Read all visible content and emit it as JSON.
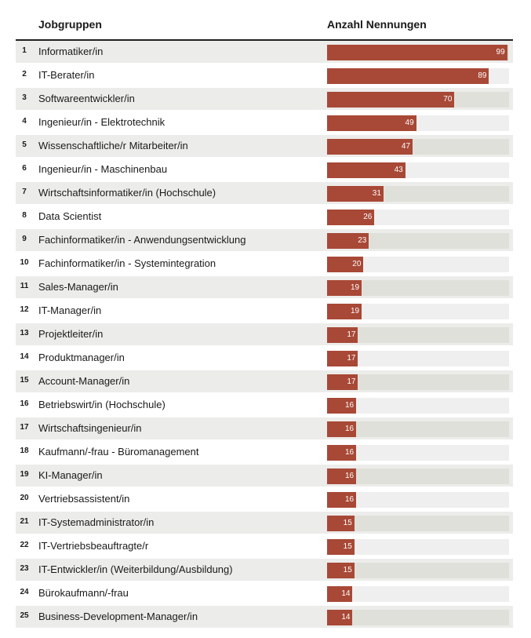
{
  "header": {
    "job_label": "Jobgruppen",
    "count_label": "Anzahl Nennungen"
  },
  "colors": {
    "bar": "#a84836",
    "track": "#efefef",
    "stripe": "#ececea"
  },
  "chart_data": {
    "type": "bar",
    "orientation": "horizontal",
    "title": "",
    "xlabel": "Anzahl Nennungen",
    "ylabel": "Jobgruppen",
    "xlim": [
      0,
      100
    ],
    "ranks": [
      1,
      2,
      3,
      4,
      5,
      6,
      7,
      8,
      9,
      10,
      11,
      12,
      13,
      14,
      15,
      16,
      17,
      18,
      19,
      20,
      21,
      22,
      23,
      24,
      25
    ],
    "categories": [
      "Informatiker/in",
      "IT-Berater/in",
      "Softwareentwickler/in",
      "Ingenieur/in - Elektrotechnik",
      "Wissenschaftliche/r Mitarbeiter/in",
      "Ingenieur/in - Maschinenbau",
      "Wirtschaftsinformatiker/in (Hochschule)",
      "Data Scientist",
      "Fachinformatiker/in - Anwendungsentwicklung",
      "Fachinformatiker/in - Systemintegration",
      "Sales-Manager/in",
      "IT-Manager/in",
      "Projektleiter/in",
      "Produktmanager/in",
      "Account-Manager/in",
      "Betriebswirt/in (Hochschule)",
      "Wirtschaftsingenieur/in",
      "Kaufmann/-frau - Büromanagement",
      "KI-Manager/in",
      "Vertriebsassistent/in",
      "IT-Systemadministrator/in",
      "IT-Vertriebsbeauftragte/r",
      "IT-Entwickler/in (Weiterbildung/Ausbildung)",
      "Bürokaufmann/-frau",
      "Business-Development-Manager/in"
    ],
    "values": [
      99,
      89,
      70,
      49,
      47,
      43,
      31,
      26,
      23,
      20,
      19,
      19,
      17,
      17,
      17,
      16,
      16,
      16,
      16,
      16,
      15,
      15,
      15,
      14,
      14
    ]
  }
}
